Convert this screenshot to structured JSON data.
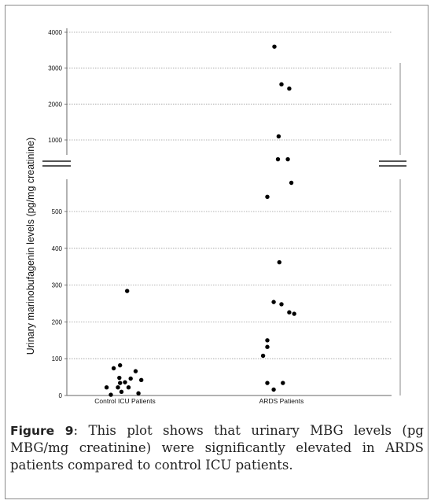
{
  "chart_data": {
    "type": "scatter",
    "ylabel": "Urinary marinobufagenin levels (pg/mg creatinine)",
    "categories": [
      "Control ICU Patients",
      "ARDS Patients"
    ],
    "y_axis_broken": true,
    "upper_segment": {
      "ylim": [
        900,
        4000
      ],
      "ticks": [
        1000,
        2000,
        3000,
        4000
      ]
    },
    "lower_segment": {
      "ylim": [
        0,
        580
      ],
      "ticks": [
        0,
        100,
        200,
        300,
        400,
        500
      ]
    },
    "grid": true,
    "series": [
      {
        "category": "Control ICU Patients",
        "points": [
          {
            "jitter": -0.26,
            "y": 22
          },
          {
            "jitter": -0.2,
            "y": 2
          },
          {
            "jitter": -0.16,
            "y": 74
          },
          {
            "jitter": -0.1,
            "y": 22
          },
          {
            "jitter": -0.08,
            "y": 48
          },
          {
            "jitter": -0.07,
            "y": 82
          },
          {
            "jitter": -0.07,
            "y": 34
          },
          {
            "jitter": -0.05,
            "y": 10
          },
          {
            "jitter": 0.0,
            "y": 36
          },
          {
            "jitter": 0.03,
            "y": 284
          },
          {
            "jitter": 0.05,
            "y": 22
          },
          {
            "jitter": 0.08,
            "y": 46
          },
          {
            "jitter": 0.15,
            "y": 66
          },
          {
            "jitter": 0.19,
            "y": 6
          },
          {
            "jitter": 0.23,
            "y": 42
          }
        ]
      },
      {
        "category": "ARDS Patients",
        "points": [
          {
            "jitter": -0.26,
            "y": 108
          },
          {
            "jitter": -0.2,
            "y": 540
          },
          {
            "jitter": -0.2,
            "y": 132
          },
          {
            "jitter": -0.2,
            "y": 150
          },
          {
            "jitter": -0.2,
            "y": 34
          },
          {
            "jitter": -0.1,
            "y": 3600
          },
          {
            "jitter": -0.11,
            "y": 254
          },
          {
            "jitter": -0.11,
            "y": 16
          },
          {
            "jitter": -0.04,
            "y": 1100
          },
          {
            "jitter": -0.05,
            "y": 642
          },
          {
            "jitter": -0.03,
            "y": 362
          },
          {
            "jitter": 0.0,
            "y": 2550
          },
          {
            "jitter": 0.0,
            "y": 248
          },
          {
            "jitter": 0.02,
            "y": 34
          },
          {
            "jitter": 0.09,
            "y": 642
          },
          {
            "jitter": 0.11,
            "y": 2430
          },
          {
            "jitter": 0.11,
            "y": 226
          },
          {
            "jitter": 0.14,
            "y": 578
          },
          {
            "jitter": 0.18,
            "y": 222
          }
        ]
      }
    ]
  },
  "caption": {
    "label": "Figure 9",
    "text": ": This plot shows that urinary MBG levels (pg MBG/mg creatinine) were significantly elevated in ARDS patients compared to control ICU patients."
  }
}
